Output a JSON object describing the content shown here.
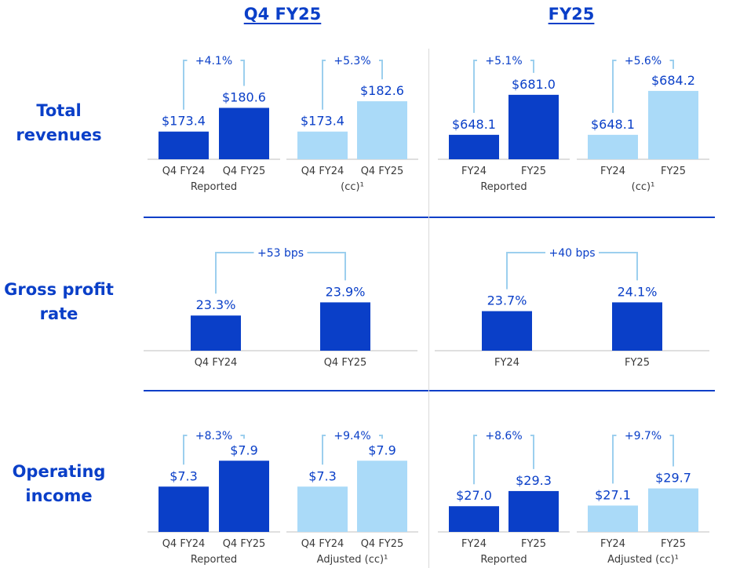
{
  "headers": {
    "quarter": "Q4 FY25",
    "year": "FY25"
  },
  "rows": {
    "revenues": "Total\nrevenues",
    "gross": "Gross profit\nrate",
    "operating": "Operating\nincome"
  },
  "colors": {
    "dark": "#0a3fc8",
    "light": "#aadaf8",
    "axis": "#bfbfbf",
    "text": "#3a3a3a",
    "bracket": "#9ccfee"
  },
  "chart_data": [
    {
      "type": "bar",
      "title": "Total revenues Q4 FY25 Reported",
      "categories": [
        "Q4 FY24",
        "Q4 FY25"
      ],
      "values": [
        173.4,
        180.6
      ],
      "labels": [
        "$173.4",
        "$180.6"
      ],
      "change": "+4.1%",
      "group_label": "Reported",
      "shade": "dark"
    },
    {
      "type": "bar",
      "title": "Total revenues Q4 FY25 (cc)",
      "categories": [
        "Q4 FY24",
        "Q4 FY25"
      ],
      "values": [
        173.4,
        182.6
      ],
      "labels": [
        "$173.4",
        "$182.6"
      ],
      "change": "+5.3%",
      "group_label": "(cc)¹",
      "shade": "light"
    },
    {
      "type": "bar",
      "title": "Total revenues FY25 Reported",
      "categories": [
        "FY24",
        "FY25"
      ],
      "values": [
        648.1,
        681.0
      ],
      "labels": [
        "$648.1",
        "$681.0"
      ],
      "change": "+5.1%",
      "group_label": "Reported",
      "shade": "dark"
    },
    {
      "type": "bar",
      "title": "Total revenues FY25 (cc)",
      "categories": [
        "FY24",
        "FY25"
      ],
      "values": [
        648.1,
        684.2
      ],
      "labels": [
        "$648.1",
        "$684.2"
      ],
      "change": "+5.6%",
      "group_label": "(cc)¹",
      "shade": "light"
    },
    {
      "type": "bar",
      "title": "Gross profit rate Q4 FY25",
      "categories": [
        "Q4 FY24",
        "Q4 FY25"
      ],
      "values": [
        23.3,
        23.9
      ],
      "labels": [
        "23.3%",
        "23.9%"
      ],
      "change": "+53 bps",
      "group_label": "",
      "shade": "dark"
    },
    {
      "type": "bar",
      "title": "Gross profit rate FY25",
      "categories": [
        "FY24",
        "FY25"
      ],
      "values": [
        23.7,
        24.1
      ],
      "labels": [
        "23.7%",
        "24.1%"
      ],
      "change": "+40 bps",
      "group_label": "",
      "shade": "dark"
    },
    {
      "type": "bar",
      "title": "Operating income Q4 FY25 Reported",
      "categories": [
        "Q4 FY24",
        "Q4 FY25"
      ],
      "values": [
        7.3,
        7.9
      ],
      "labels": [
        "$7.3",
        "$7.9"
      ],
      "change": "+8.3%",
      "group_label": "Reported",
      "shade": "dark"
    },
    {
      "type": "bar",
      "title": "Operating income Q4 FY25 Adjusted (cc)",
      "categories": [
        "Q4 FY24",
        "Q4 FY25"
      ],
      "values": [
        7.3,
        7.9
      ],
      "labels": [
        "$7.3",
        "$7.9"
      ],
      "change": "+9.4%",
      "group_label": "Adjusted (cc)¹",
      "shade": "light"
    },
    {
      "type": "bar",
      "title": "Operating income FY25 Reported",
      "categories": [
        "FY24",
        "FY25"
      ],
      "values": [
        27.0,
        29.3
      ],
      "labels": [
        "$27.0",
        "$29.3"
      ],
      "change": "+8.6%",
      "group_label": "Reported",
      "shade": "dark"
    },
    {
      "type": "bar",
      "title": "Operating income FY25 Adjusted (cc)",
      "categories": [
        "FY24",
        "FY25"
      ],
      "values": [
        27.1,
        29.7
      ],
      "labels": [
        "$27.1",
        "$29.7"
      ],
      "change": "+9.7%",
      "group_label": "Adjusted (cc)¹",
      "shade": "light"
    }
  ]
}
